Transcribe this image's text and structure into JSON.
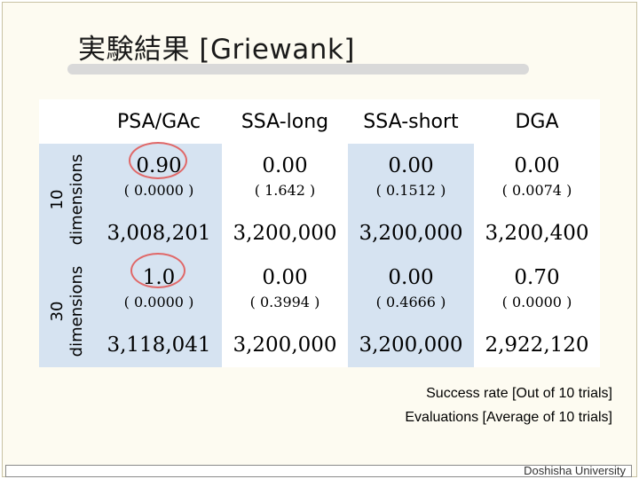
{
  "title": "実験結果 [Griewank]",
  "columns": [
    "PSA/GAc",
    "SSA-long",
    "SSA-short",
    "DGA"
  ],
  "groups": [
    {
      "label_line1": "10",
      "label_line2": "dimensions",
      "success": [
        "0.90",
        "0.00",
        "0.00",
        "0.00"
      ],
      "std": [
        "( 0.0000 )",
        "( 1.642 )",
        "( 0.1512 )",
        "( 0.0074 )"
      ],
      "evaluations": [
        "3,008,201",
        "3,200,000",
        "3,200,000",
        "3,200,400"
      ]
    },
    {
      "label_line1": "30",
      "label_line2": "dimensions",
      "success": [
        "1.0",
        "0.00",
        "0.00",
        "0.70"
      ],
      "std": [
        "( 0.0000 )",
        "( 0.3994 )",
        "( 0.4666 )",
        "( 0.0000 )"
      ],
      "evaluations": [
        "3,118,041",
        "3,200,000",
        "3,200,000",
        "2,922,120"
      ]
    }
  ],
  "legend": {
    "line1": "Success rate [Out of 10 trials]",
    "line2": "Evaluations [Average of 10 trials]"
  },
  "footer": "Doshisha University",
  "colors": {
    "alt_row": "#d6e3f1",
    "circle": "#e06868"
  }
}
